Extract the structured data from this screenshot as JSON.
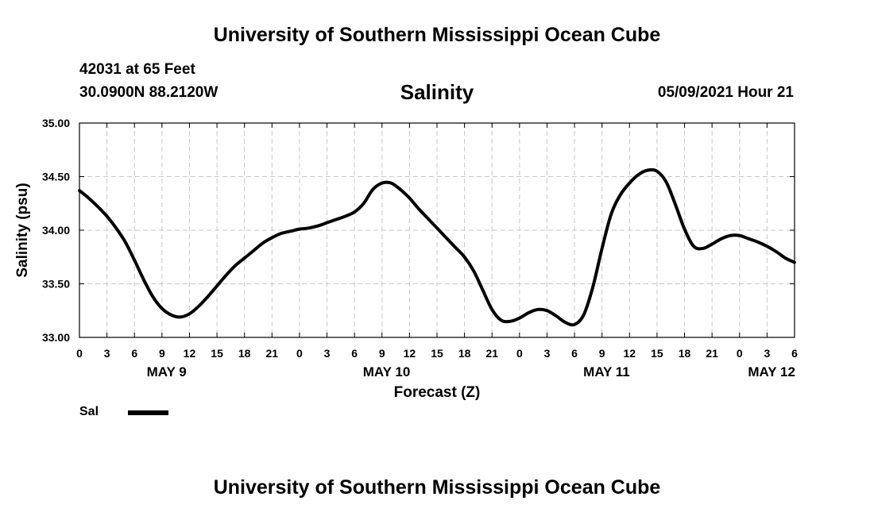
{
  "header": {
    "title": "University of Southern Mississippi Ocean Cube",
    "station": "42031 at 65 Feet",
    "coords": "30.0900N  88.2120W",
    "timestamp": "05/09/2021 Hour 21"
  },
  "footer": {
    "title": "University of Southern Mississippi Ocean Cube"
  },
  "legend": {
    "label": "Sal",
    "color": "#000000"
  },
  "chart_data": {
    "type": "line",
    "title": "Salinity",
    "xlabel": "Forecast (Z)",
    "ylabel": "Salinity (psu)",
    "ylim": [
      33.0,
      35.0
    ],
    "yticks": [
      "33.00",
      "33.50",
      "34.00",
      "34.50",
      "35.00"
    ],
    "xlim_hours": [
      0,
      78
    ],
    "xtick_labels": [
      "0",
      "3",
      "6",
      "9",
      "12",
      "15",
      "18",
      "21",
      "0",
      "3",
      "6",
      "9",
      "12",
      "15",
      "18",
      "21",
      "0",
      "3",
      "6",
      "9",
      "12",
      "15",
      "18",
      "21",
      "0",
      "3",
      "6"
    ],
    "day_labels": [
      {
        "label": "MAY 9",
        "hour": 9.5
      },
      {
        "label": "MAY 10",
        "hour": 33.5
      },
      {
        "label": "MAY 11",
        "hour": 57.5
      },
      {
        "label": "MAY 12",
        "hour": 75.5
      }
    ],
    "grid": true,
    "series": [
      {
        "name": "Sal",
        "x": [
          0,
          1,
          2,
          3,
          4,
          5,
          6,
          7,
          8,
          9,
          10,
          11,
          12,
          13,
          14,
          15,
          16,
          17,
          18,
          19,
          20,
          21,
          22,
          23,
          24,
          25,
          26,
          27,
          28,
          29,
          30,
          31,
          32,
          33,
          34,
          35,
          36,
          37,
          38,
          39,
          40,
          41,
          42,
          43,
          44,
          45,
          46,
          47,
          48,
          49,
          50,
          51,
          52,
          53,
          54,
          55,
          56,
          57,
          58,
          59,
          60,
          61,
          62,
          63,
          64,
          65,
          66,
          67,
          68,
          69,
          70,
          71,
          72,
          73,
          74,
          75,
          76,
          77,
          78
        ],
        "y": [
          34.37,
          34.3,
          34.22,
          34.13,
          34.02,
          33.89,
          33.72,
          33.54,
          33.38,
          33.27,
          33.21,
          33.19,
          33.22,
          33.29,
          33.38,
          33.48,
          33.58,
          33.67,
          33.74,
          33.81,
          33.88,
          33.93,
          33.97,
          33.99,
          34.01,
          34.02,
          34.04,
          34.07,
          34.1,
          34.13,
          34.17,
          34.25,
          34.38,
          34.44,
          34.44,
          34.38,
          34.3,
          34.2,
          34.11,
          34.02,
          33.93,
          33.84,
          33.75,
          33.62,
          33.44,
          33.26,
          33.16,
          33.15,
          33.18,
          33.23,
          33.26,
          33.25,
          33.2,
          33.14,
          33.12,
          33.21,
          33.47,
          33.83,
          34.15,
          34.33,
          34.44,
          34.52,
          34.56,
          34.55,
          34.45,
          34.24,
          34.01,
          33.85,
          33.83,
          33.87,
          33.92,
          33.95,
          33.95,
          33.92,
          33.89,
          33.85,
          33.8,
          33.74,
          33.7
        ]
      }
    ]
  }
}
